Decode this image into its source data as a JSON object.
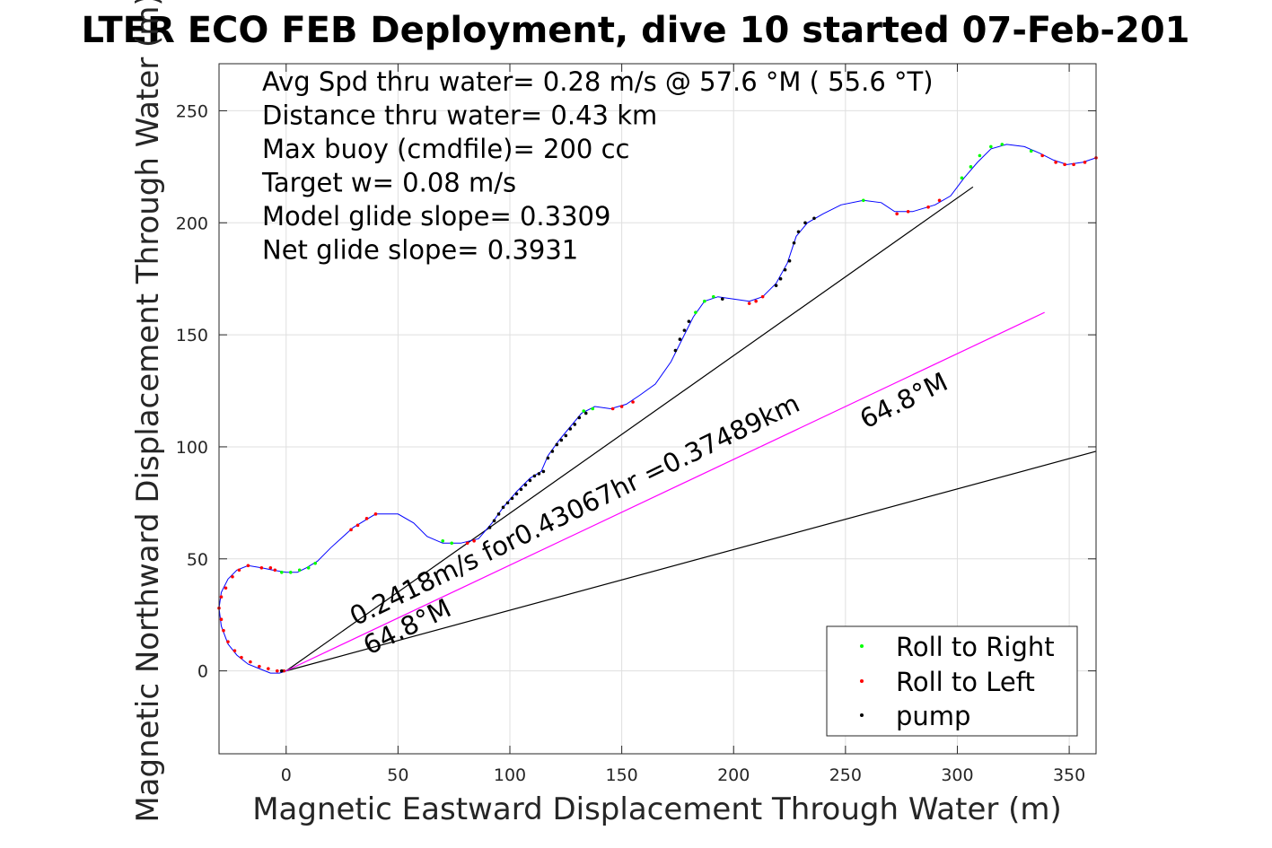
{
  "chart_data": {
    "type": "scatter",
    "title": "LTER ECO FEB Deployment, dive 10 started 07-Feb-201",
    "xlabel": "Magnetic Eastward Displacement Through Water (m)",
    "ylabel": "Magnetic Northward Displacement Through Water (m)",
    "xlim": [
      -30,
      362
    ],
    "ylim": [
      -37,
      271
    ],
    "xticks": [
      0,
      50,
      100,
      150,
      200,
      250,
      300,
      350
    ],
    "yticks": [
      0,
      50,
      100,
      150,
      200,
      250
    ],
    "grid": true,
    "legend_position": "bottom-right",
    "info_lines": [
      "Avg Spd thru water=  0.28 m/s @  57.6 °M ( 55.6 °T)",
      "Distance thru water=  0.43 km",
      "Max buoy (cmdfile)= 200 cc",
      "Target w= 0.08 m/s",
      "Model glide slope= 0.3309",
      "Net glide slope= 0.3931"
    ],
    "annotations": [
      {
        "text": "0.2418m/s for0.43067hr =0.37489km",
        "x": 31,
        "y": 20,
        "angle_deg": 25.9
      },
      {
        "text": "64.8°M",
        "x": 37,
        "y": 7,
        "angle_deg": 25.9
      },
      {
        "text": "64.8°M",
        "x": 259,
        "y": 108,
        "angle_deg": 25.9
      }
    ],
    "colors": {
      "track": "#0000ff",
      "roll_right": "#00ff00",
      "roll_left": "#ff0000",
      "pump": "#000000",
      "current_line": "#ff00ff",
      "heading_line": "#000000"
    },
    "lines": [
      {
        "kind": "heading",
        "points": [
          [
            0,
            0
          ],
          [
            307,
            216
          ]
        ]
      },
      {
        "kind": "heading",
        "points": [
          [
            0,
            0
          ],
          [
            362,
            98
          ]
        ]
      },
      {
        "kind": "current",
        "points": [
          [
            0,
            0
          ],
          [
            339,
            160
          ]
        ]
      }
    ],
    "track": [
      [
        0,
        0
      ],
      [
        -3,
        -1
      ],
      [
        -7,
        -1
      ],
      [
        -12,
        1
      ],
      [
        -17,
        3
      ],
      [
        -22,
        7
      ],
      [
        -26,
        12
      ],
      [
        -29,
        20
      ],
      [
        -30,
        28
      ],
      [
        -29,
        35
      ],
      [
        -26,
        41
      ],
      [
        -22,
        45
      ],
      [
        -17,
        47
      ],
      [
        -11,
        46
      ],
      [
        -6,
        45
      ],
      [
        0,
        44
      ],
      [
        5,
        44
      ],
      [
        9,
        46
      ],
      [
        14,
        49
      ],
      [
        20,
        55
      ],
      [
        30,
        64
      ],
      [
        40,
        70
      ],
      [
        50,
        70
      ],
      [
        57,
        66
      ],
      [
        63,
        60
      ],
      [
        70,
        57
      ],
      [
        78,
        57
      ],
      [
        86,
        59
      ],
      [
        92,
        66
      ],
      [
        97,
        73
      ],
      [
        103,
        80
      ],
      [
        109,
        86
      ],
      [
        114,
        89
      ],
      [
        117,
        96
      ],
      [
        122,
        103
      ],
      [
        127,
        109
      ],
      [
        132,
        115
      ],
      [
        138,
        118
      ],
      [
        145,
        117
      ],
      [
        152,
        119
      ],
      [
        158,
        123
      ],
      [
        165,
        128
      ],
      [
        172,
        138
      ],
      [
        177,
        148
      ],
      [
        182,
        158
      ],
      [
        187,
        165
      ],
      [
        193,
        167
      ],
      [
        200,
        166
      ],
      [
        207,
        165
      ],
      [
        213,
        167
      ],
      [
        219,
        173
      ],
      [
        224,
        182
      ],
      [
        228,
        194
      ],
      [
        233,
        200
      ],
      [
        240,
        204
      ],
      [
        248,
        208
      ],
      [
        258,
        210
      ],
      [
        266,
        209
      ],
      [
        272,
        205
      ],
      [
        280,
        205
      ],
      [
        290,
        208
      ],
      [
        297,
        212
      ],
      [
        303,
        220
      ],
      [
        309,
        227
      ],
      [
        315,
        233
      ],
      [
        322,
        235
      ],
      [
        330,
        234
      ],
      [
        337,
        231
      ],
      [
        343,
        228
      ],
      [
        349,
        226
      ],
      [
        356,
        227
      ],
      [
        362,
        229
      ]
    ],
    "roll_right": [
      [
        -2,
        44
      ],
      [
        2,
        44
      ],
      [
        6,
        45
      ],
      [
        10,
        46
      ],
      [
        13,
        48
      ],
      [
        70,
        58
      ],
      [
        74,
        57
      ],
      [
        133,
        116
      ],
      [
        137,
        117
      ],
      [
        183,
        160
      ],
      [
        187,
        165
      ],
      [
        191,
        167
      ],
      [
        258,
        210
      ],
      [
        302,
        220
      ],
      [
        306,
        225
      ],
      [
        310,
        230
      ],
      [
        315,
        234
      ],
      [
        320,
        235
      ],
      [
        333,
        232
      ]
    ],
    "roll_left": [
      [
        -1,
        0
      ],
      [
        -4,
        0
      ],
      [
        -8,
        1
      ],
      [
        -12,
        2
      ],
      [
        -16,
        4
      ],
      [
        -20,
        6
      ],
      [
        -23,
        9
      ],
      [
        -26,
        13
      ],
      [
        -28,
        18
      ],
      [
        -29,
        23
      ],
      [
        -30,
        28
      ],
      [
        -29,
        33
      ],
      [
        -27,
        37
      ],
      [
        -24,
        42
      ],
      [
        -21,
        45
      ],
      [
        -17,
        47
      ],
      [
        -11,
        46
      ],
      [
        -7,
        46
      ],
      [
        -5,
        45
      ],
      [
        29,
        63
      ],
      [
        32,
        65
      ],
      [
        36,
        68
      ],
      [
        40,
        70
      ],
      [
        81,
        57
      ],
      [
        84,
        58
      ],
      [
        146,
        117
      ],
      [
        150,
        118
      ],
      [
        155,
        120
      ],
      [
        207,
        164
      ],
      [
        210,
        165
      ],
      [
        213,
        167
      ],
      [
        273,
        204
      ],
      [
        278,
        205
      ],
      [
        287,
        207
      ],
      [
        292,
        210
      ],
      [
        338,
        230
      ],
      [
        344,
        227
      ],
      [
        348,
        226
      ],
      [
        352,
        226
      ],
      [
        357,
        227
      ],
      [
        362,
        229
      ]
    ],
    "pump": [
      [
        -2,
        0
      ],
      [
        91,
        64
      ],
      [
        93,
        67
      ],
      [
        95,
        70
      ],
      [
        97,
        73
      ],
      [
        99,
        75
      ],
      [
        101,
        77
      ],
      [
        103,
        79
      ],
      [
        105,
        81
      ],
      [
        107,
        83
      ],
      [
        109,
        85
      ],
      [
        111,
        87
      ],
      [
        113,
        88
      ],
      [
        115,
        89
      ],
      [
        117,
        95
      ],
      [
        119,
        98
      ],
      [
        121,
        101
      ],
      [
        123,
        103
      ],
      [
        125,
        105
      ],
      [
        127,
        108
      ],
      [
        129,
        110
      ],
      [
        131,
        113
      ],
      [
        134,
        115
      ],
      [
        174,
        143
      ],
      [
        176,
        148
      ],
      [
        178,
        152
      ],
      [
        180,
        156
      ],
      [
        195,
        166
      ],
      [
        219,
        172
      ],
      [
        221,
        175
      ],
      [
        223,
        179
      ],
      [
        225,
        183
      ],
      [
        227,
        191
      ],
      [
        229,
        196
      ],
      [
        232,
        200
      ],
      [
        236,
        202
      ]
    ],
    "legend": [
      {
        "label": "Roll to Right",
        "color": "#00ff00"
      },
      {
        "label": "Roll to Left",
        "color": "#ff0000"
      },
      {
        "label": "pump",
        "color": "#000000"
      }
    ]
  }
}
